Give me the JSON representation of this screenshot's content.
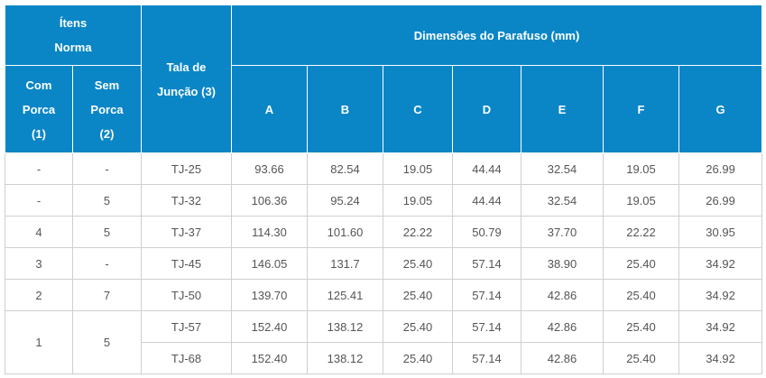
{
  "header": {
    "itens": "Ítens",
    "norma": "Norma",
    "tala_line1": "Tala de",
    "tala_line2": "Junção (3)",
    "dimensoes": "Dimensões do Parafuso (mm)",
    "com_porca": [
      "Com",
      "Porca",
      "(1)"
    ],
    "sem_porca": [
      "Sem",
      "Porca",
      "(2)"
    ],
    "dims": [
      "A",
      "B",
      "C",
      "D",
      "E",
      "F",
      "G"
    ]
  },
  "rows": [
    {
      "com": "-",
      "sem": "-",
      "tala": "TJ-25",
      "dims": [
        "93.66",
        "82.54",
        "19.05",
        "44.44",
        "32.54",
        "19.05",
        "26.99"
      ]
    },
    {
      "com": "-",
      "sem": "5",
      "tala": "TJ-32",
      "dims": [
        "106.36",
        "95.24",
        "19.05",
        "44.44",
        "32.54",
        "19.05",
        "26.99"
      ]
    },
    {
      "com": "4",
      "sem": "5",
      "tala": "TJ-37",
      "dims": [
        "114.30",
        "101.60",
        "22.22",
        "50.79",
        "37.70",
        "22.22",
        "30.95"
      ]
    },
    {
      "com": "3",
      "sem": "-",
      "tala": "TJ-45",
      "dims": [
        "146.05",
        "131.7",
        "25.40",
        "57.14",
        "38.90",
        "25.40",
        "34.92"
      ]
    },
    {
      "com": "2",
      "sem": "7",
      "tala": "TJ-50",
      "dims": [
        "139.70",
        "125.41",
        "25.40",
        "57.14",
        "42.86",
        "25.40",
        "34.92"
      ]
    },
    {
      "com": "1",
      "sem": "5",
      "tala": "TJ-57",
      "dims": [
        "152.40",
        "138.12",
        "25.40",
        "57.14",
        "42.86",
        "25.40",
        "34.92"
      ]
    },
    {
      "com": "",
      "sem": "",
      "tala": "TJ-68",
      "dims": [
        "152.40",
        "138.12",
        "25.40",
        "57.14",
        "42.86",
        "25.40",
        "34.92"
      ]
    }
  ]
}
